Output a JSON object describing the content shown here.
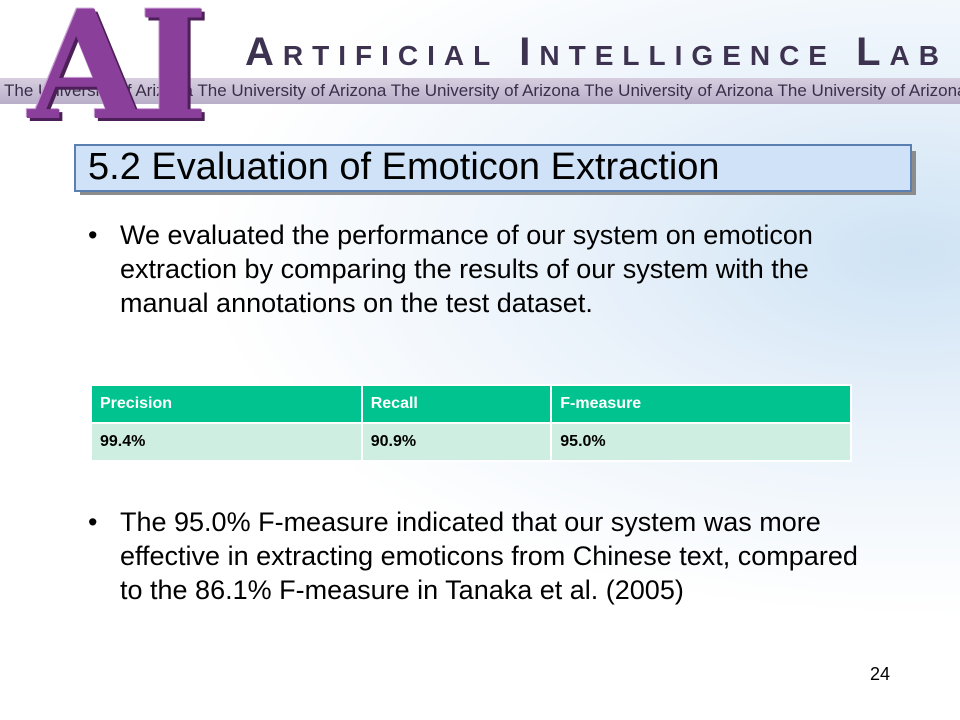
{
  "header": {
    "logo": "AI",
    "lab": "Artificial Intelligence Lab",
    "strip": "The University of Arizona The University of Arizona The University of Arizona The University of Arizona The University of Arizona The University"
  },
  "title": "5.2 Evaluation of Emoticon Extraction",
  "bullets": [
    "We evaluated the performance of our system on emoticon extraction by comparing the results of our system with the manual annotations on the test dataset.",
    "The 95.0% F-measure indicated that our system was more effective in extracting emoticons from Chinese text, compared to the 86.1% F-measure in Tanaka et al. (2005)"
  ],
  "table": {
    "header": [
      "Precision",
      "Recall",
      "F-measure"
    ],
    "rows": [
      [
        "99.4%",
        "90.9%",
        "95.0%"
      ]
    ]
  },
  "page_number": "24"
}
